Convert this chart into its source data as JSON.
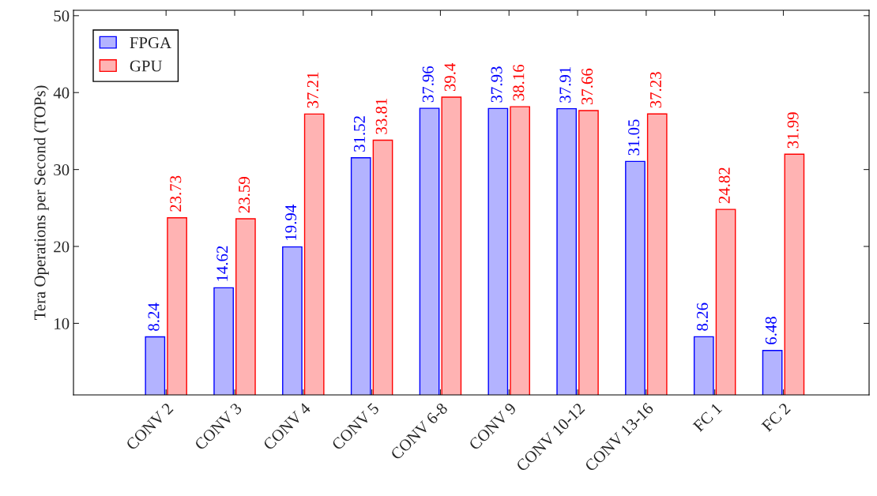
{
  "chart_data": {
    "type": "bar",
    "ylabel": "Tera Operations per Second (TOPs)",
    "categories": [
      "CONV 2",
      "CONV 3",
      "CONV 4",
      "CONV 5",
      "CONV 6-8",
      "CONV 9",
      "CONV 10-12",
      "CONV 13-16",
      "FC 1",
      "FC 2"
    ],
    "series": [
      {
        "name": "FPGA",
        "color": "#b3b3ff",
        "values": [
          8.24,
          14.62,
          19.94,
          31.52,
          37.96,
          37.93,
          37.91,
          31.05,
          8.26,
          6.48
        ]
      },
      {
        "name": "GPU",
        "color": "#ffb3b3",
        "values": [
          23.73,
          23.59,
          37.21,
          33.81,
          39.4,
          38.16,
          37.66,
          37.23,
          24.82,
          31.99
        ]
      }
    ],
    "ylim": [
      0.7,
      50.7
    ],
    "yticks": [
      10,
      20,
      30,
      40,
      50
    ],
    "data_labels": true,
    "legend": "top left",
    "grid": false
  }
}
